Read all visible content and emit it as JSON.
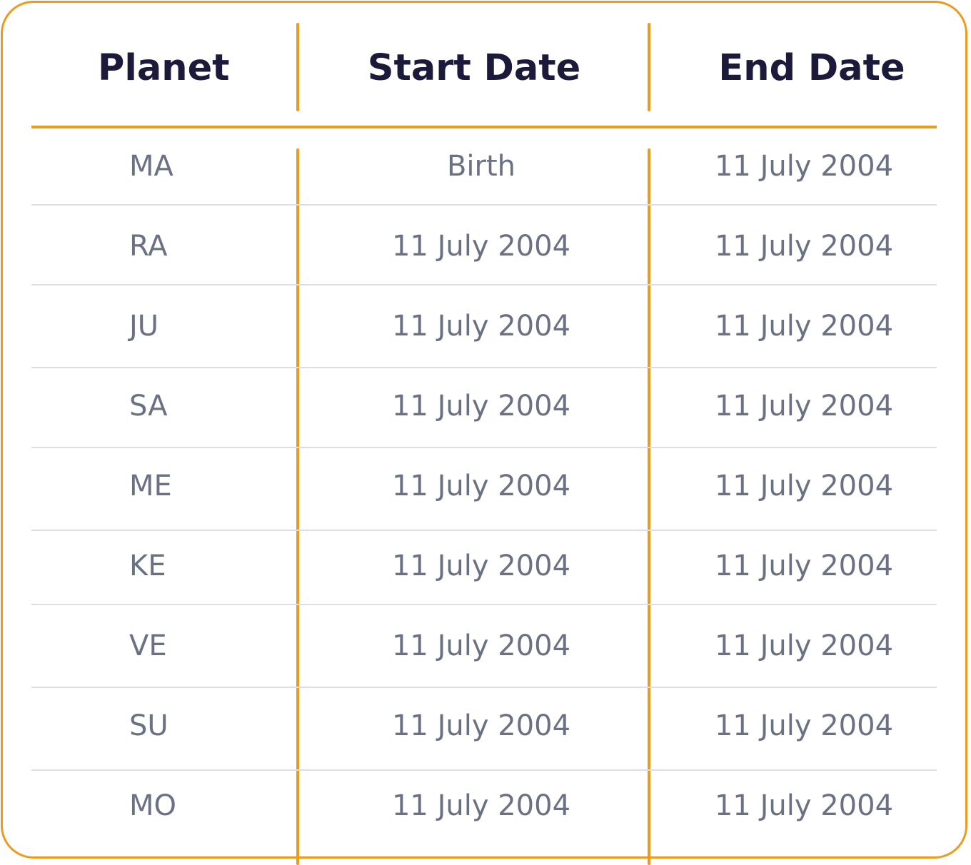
{
  "table": {
    "headers": [
      "Planet",
      "Start Date",
      "End Date"
    ],
    "rows": [
      {
        "planet": "MA",
        "start": "Birth",
        "end": "11 July 2004"
      },
      {
        "planet": "RA",
        "start": "11 July 2004",
        "end": "11 July 2004"
      },
      {
        "planet": "JU",
        "start": "11 July 2004",
        "end": "11 July 2004"
      },
      {
        "planet": "SA",
        "start": "11 July 2004",
        "end": "11 July 2004"
      },
      {
        "planet": "ME",
        "start": "11 July 2004",
        "end": "11 July 2004"
      },
      {
        "planet": "KE",
        "start": "11 July 2004",
        "end": "11 July 2004"
      },
      {
        "planet": "VE",
        "start": "11 July 2004",
        "end": "11 July 2004"
      },
      {
        "planet": "SU",
        "start": "11 July 2004",
        "end": "11 July 2004"
      },
      {
        "planet": "MO",
        "start": "11 July 2004",
        "end": "11 July 2004"
      }
    ]
  },
  "colors": {
    "accent": "#EB9C1C",
    "header_text": "#1C1A3B",
    "cell_text": "#6A7184",
    "row_divider": "#DEDEDE"
  }
}
